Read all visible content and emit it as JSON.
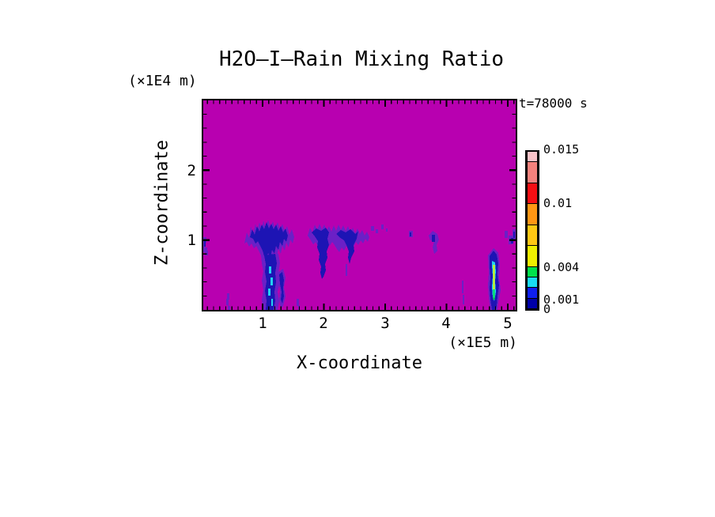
{
  "figure": {
    "title": "H2O–I–Rain Mixing Ratio",
    "time_label": "t=78000 s",
    "z_axis_units": "(×1E4 m)",
    "x_axis_units": "(×1E5 m)",
    "x_axis_label": "X-coordinate",
    "z_axis_label": "Z-coordinate"
  },
  "palette": {
    "page_background": "#FFFFFF",
    "axis_color": "#000000",
    "field_background": "#B800B0",
    "fringe": "#6B20C6",
    "core": "#1D14B4",
    "cyan_fleck": "#22D2F0",
    "green_core": "#00DC50",
    "yellow_core": "#E9F400"
  },
  "chart_data": {
    "type": "heatmap",
    "title": "H2O-I-Rain Mixing Ratio",
    "xlabel": "X-coordinate",
    "x_units": "(×1E5 m)",
    "ylabel": "Z-coordinate",
    "y_units": "(×1E4 m)",
    "time_annotation": "t=78000 s",
    "x_range": [
      0,
      5.13
    ],
    "z_range": [
      0,
      3
    ],
    "x_ticks": [
      1,
      2,
      3,
      4,
      5
    ],
    "z_ticks": [
      1,
      2
    ],
    "minor_tick_interval_x": 0.1,
    "minor_tick_interval_z": 0.2,
    "grid": false,
    "legend_position": "right",
    "background_meaning": "rain mixing ratio ~ 0 (magenta)",
    "levels": [
      0,
      0.001,
      0.002,
      0.003,
      0.004,
      0.006,
      0.008,
      0.01,
      0.012,
      0.014,
      0.015
    ],
    "level_colors": [
      "#0000A8",
      "#0F1FF0",
      "#18DCF2",
      "#00E14B",
      "#EFF000",
      "#FFC814",
      "#FF9614",
      "#F50F14",
      "#F4827D",
      "#F9C3C8"
    ],
    "colorbar_labels": [
      0.015,
      0.01,
      0.004,
      0.001,
      0
    ],
    "rain_cells": [
      {
        "x_span": [
          0.0,
          0.1
        ],
        "z_span": [
          0.85,
          1.1
        ],
        "max_value": 0.001,
        "note": "specks at left edge"
      },
      {
        "x_span": [
          0.4,
          0.5
        ],
        "z_span": [
          0.0,
          0.25
        ],
        "max_value": 0.001,
        "note": "small wisp near surface"
      },
      {
        "x_span": [
          0.72,
          1.46
        ],
        "z_span": [
          0.0,
          1.3
        ],
        "max_value": 0.003,
        "note": "large storm; precipitation shaft reaches surface with cyan flecks (0.002-0.003)"
      },
      {
        "x_span": [
          1.22,
          1.34
        ],
        "z_span": [
          0.05,
          0.55
        ],
        "max_value": 0.001,
        "note": "secondary narrow shaft"
      },
      {
        "x_span": [
          1.52,
          1.6
        ],
        "z_span": [
          0.0,
          0.15
        ],
        "max_value": 0.001,
        "note": "faint streaklet"
      },
      {
        "x_span": [
          1.7,
          2.45
        ],
        "z_span": [
          0.45,
          1.25
        ],
        "max_value": 0.001,
        "note": "cluster of V-shaped virga plumes, tips at z~0.45 and z~0.7, not reaching surface"
      },
      {
        "x_span": [
          2.72,
          3.0
        ],
        "z_span": [
          1.05,
          1.2
        ],
        "max_value": 0.001,
        "note": "sparse anvil specks"
      },
      {
        "x_span": [
          3.35,
          3.42
        ],
        "z_span": [
          1.0,
          1.15
        ],
        "max_value": 0.001,
        "note": "small speck"
      },
      {
        "x_span": [
          3.68,
          3.85
        ],
        "z_span": [
          0.8,
          1.1
        ],
        "max_value": 0.001,
        "note": "small descending wisp"
      },
      {
        "x_span": [
          4.22,
          4.28
        ],
        "z_span": [
          0.1,
          0.45
        ],
        "max_value": 0.001,
        "note": "faint thin streak"
      },
      {
        "x_span": [
          4.66,
          4.82
        ],
        "z_span": [
          0.0,
          0.85
        ],
        "max_value": 0.006,
        "note": "intense narrow shaft reaching surface; yellow core ~0.005, green ~0.004, cyan ~0.003"
      },
      {
        "x_span": [
          4.9,
          5.12
        ],
        "z_span": [
          0.9,
          1.15
        ],
        "max_value": 0.001,
        "note": "specks at right edge"
      }
    ]
  }
}
